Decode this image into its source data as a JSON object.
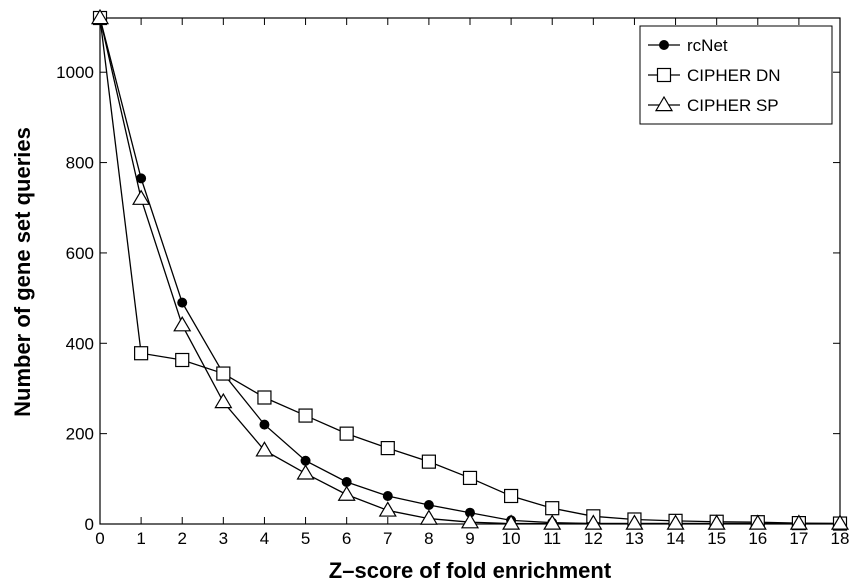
{
  "chart_data": {
    "type": "line",
    "title": "",
    "xlabel": "Z–score of fold enrichment",
    "ylabel": "Number of gene set queries",
    "x": [
      0,
      1,
      2,
      3,
      4,
      5,
      6,
      7,
      8,
      9,
      10,
      11,
      12,
      13,
      14,
      15,
      16,
      17,
      18
    ],
    "xlim": [
      0,
      18
    ],
    "ylim": [
      0,
      1120
    ],
    "xticks": [
      "0",
      "1",
      "2",
      "3",
      "4",
      "5",
      "6",
      "7",
      "8",
      "9",
      "10",
      "11",
      "12",
      "13",
      "14",
      "15",
      "16",
      "17",
      "18"
    ],
    "yticks": [
      "0",
      "200",
      "400",
      "600",
      "800",
      "1000"
    ],
    "ytick_values": [
      0,
      200,
      400,
      600,
      800,
      1000
    ],
    "grid": false,
    "legend_position": "top-right",
    "series": [
      {
        "name": "rcNet",
        "marker": "filled-circle",
        "values": [
          1120,
          765,
          490,
          333,
          220,
          140,
          93,
          62,
          42,
          25,
          8,
          3,
          1,
          1,
          1,
          1,
          1,
          1,
          1
        ]
      },
      {
        "name": "CIPHER DN",
        "marker": "open-square",
        "values": [
          1120,
          378,
          363,
          333,
          280,
          240,
          200,
          168,
          138,
          102,
          62,
          35,
          17,
          10,
          7,
          5,
          4,
          2,
          1
        ]
      },
      {
        "name": "CIPHER SP",
        "marker": "open-triangle",
        "values": [
          1120,
          720,
          440,
          270,
          163,
          112,
          65,
          30,
          12,
          4,
          1,
          1,
          1,
          1,
          1,
          1,
          1,
          1,
          1
        ]
      }
    ]
  }
}
